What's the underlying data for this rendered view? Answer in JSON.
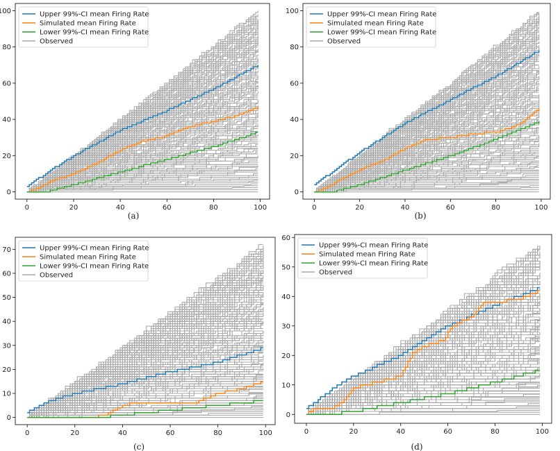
{
  "colors": {
    "upper": "#1f77b4",
    "simulated": "#ff7f0e",
    "lower": "#2ca02c",
    "observed": "#a9a9a9"
  },
  "chart_data": [
    {
      "id": "a",
      "type": "line",
      "caption": "(a)",
      "legend": [
        "Upper 99%-CI mean Firing Rate",
        "Simulated mean Firing Rate",
        "Lower 99%-CI mean Firing Rate",
        "Observed"
      ],
      "legend_position": "top-left",
      "xlim": [
        -5,
        104
      ],
      "ylim": [
        -4,
        104
      ],
      "xticks": [
        0,
        20,
        40,
        60,
        80,
        100
      ],
      "yticks": [
        0,
        20,
        40,
        60,
        80,
        100
      ],
      "observed_envelope": {
        "max_final": 100,
        "min_final": 0
      },
      "series": [
        {
          "name": "Upper 99%-CI mean Firing Rate",
          "role": "upper",
          "x": [
            0,
            10,
            20,
            40,
            60,
            80,
            99
          ],
          "y": [
            3,
            12,
            20,
            34,
            45,
            57,
            70
          ]
        },
        {
          "name": "Simulated mean Firing Rate",
          "role": "simulated",
          "x": [
            0,
            5,
            10,
            20,
            30,
            40,
            50,
            60,
            70,
            80,
            90,
            99
          ],
          "y": [
            0,
            2,
            6,
            10,
            16,
            23,
            28,
            31,
            36,
            39,
            42,
            47
          ]
        },
        {
          "name": "Lower 99%-CI mean Firing Rate",
          "role": "lower",
          "x": [
            0,
            8,
            20,
            40,
            60,
            80,
            99
          ],
          "y": [
            0,
            0,
            4,
            11,
            18,
            25,
            33
          ]
        }
      ]
    },
    {
      "id": "b",
      "type": "line",
      "caption": "(b)",
      "legend": [
        "Upper 99%-CI mean Firing Rate",
        "Simulated mean Firing Rate",
        "Lower 99%-CI mean Firing Rate",
        "Observed"
      ],
      "legend_position": "top-left",
      "xlim": [
        -5,
        104
      ],
      "ylim": [
        -4,
        104
      ],
      "xticks": [
        0,
        20,
        40,
        60,
        80,
        100
      ],
      "yticks": [
        0,
        20,
        40,
        60,
        80,
        100
      ],
      "observed_envelope": {
        "max_final": 100,
        "min_final": 0
      },
      "series": [
        {
          "name": "Upper 99%-CI mean Firing Rate",
          "role": "upper",
          "x": [
            0,
            10,
            20,
            40,
            60,
            80,
            99
          ],
          "y": [
            4,
            13,
            22,
            38,
            51,
            64,
            78
          ]
        },
        {
          "name": "Simulated mean Firing Rate",
          "role": "simulated",
          "x": [
            0,
            5,
            10,
            20,
            30,
            40,
            50,
            60,
            70,
            80,
            90,
            99
          ],
          "y": [
            0,
            2,
            6,
            12,
            17,
            24,
            29,
            30,
            32,
            33,
            37,
            46
          ]
        },
        {
          "name": "Lower 99%-CI mean Firing Rate",
          "role": "lower",
          "x": [
            0,
            8,
            20,
            40,
            60,
            80,
            99
          ],
          "y": [
            0,
            0,
            4,
            12,
            20,
            29,
            39
          ]
        }
      ]
    },
    {
      "id": "c",
      "type": "line",
      "caption": "(c)",
      "legend": [
        "Upper 99%-CI mean Firing Rate",
        "Simulated mean Firing Rate",
        "Lower 99%-CI mean Firing Rate",
        "Observed"
      ],
      "legend_position": "top-left",
      "xlim": [
        -5,
        104
      ],
      "ylim": [
        -3,
        75
      ],
      "xticks": [
        0,
        20,
        40,
        60,
        80,
        100
      ],
      "yticks": [
        0,
        10,
        20,
        30,
        40,
        50,
        60,
        70
      ],
      "observed_envelope": {
        "max_final": 72,
        "min_final": 0
      },
      "series": [
        {
          "name": "Upper 99%-CI mean Firing Rate",
          "role": "upper",
          "x": [
            0,
            10,
            20,
            40,
            60,
            80,
            99
          ],
          "y": [
            2,
            7,
            10,
            14,
            19,
            23,
            29
          ]
        },
        {
          "name": "Simulated mean Firing Rate",
          "role": "simulated",
          "x": [
            0,
            28,
            35,
            40,
            45,
            70,
            75,
            80,
            90,
            99
          ],
          "y": [
            0,
            0,
            2,
            5,
            6,
            6,
            8,
            10,
            12,
            15
          ]
        },
        {
          "name": "Lower 99%-CI mean Firing Rate",
          "role": "lower",
          "x": [
            0,
            30,
            40,
            50,
            60,
            70,
            80,
            90,
            99
          ],
          "y": [
            0,
            0,
            1,
            2,
            3,
            4,
            5,
            6,
            7
          ]
        }
      ]
    },
    {
      "id": "d",
      "type": "line",
      "caption": "(d)",
      "legend": [
        "Upper 99%-CI mean Firing Rate",
        "Simulated mean Firing Rate",
        "Lower 99%-CI mean Firing Rate",
        "Observed"
      ],
      "legend_position": "top-left",
      "xlim": [
        -5,
        104
      ],
      "ylim": [
        -3,
        61
      ],
      "xticks": [
        0,
        20,
        40,
        60,
        80,
        100
      ],
      "yticks": [
        0,
        10,
        20,
        30,
        40,
        50,
        60
      ],
      "observed_envelope": {
        "max_final": 58,
        "min_final": 0
      },
      "series": [
        {
          "name": "Upper 99%-CI mean Firing Rate",
          "role": "upper",
          "x": [
            0,
            10,
            20,
            40,
            60,
            80,
            99
          ],
          "y": [
            2,
            8,
            13,
            20,
            30,
            37,
            43
          ]
        },
        {
          "name": "Simulated mean Firing Rate",
          "role": "simulated",
          "x": [
            0,
            3,
            10,
            15,
            20,
            30,
            40,
            45,
            50,
            58,
            62,
            70,
            75,
            80,
            90,
            99
          ],
          "y": [
            0,
            2,
            2,
            4,
            9,
            11,
            13,
            21,
            23,
            25,
            30,
            33,
            38,
            38,
            39,
            42
          ]
        },
        {
          "name": "Lower 99%-CI mean Firing Rate",
          "role": "lower",
          "x": [
            0,
            10,
            20,
            40,
            60,
            80,
            99
          ],
          "y": [
            0,
            0,
            1,
            4,
            7,
            11,
            15
          ]
        }
      ]
    }
  ]
}
